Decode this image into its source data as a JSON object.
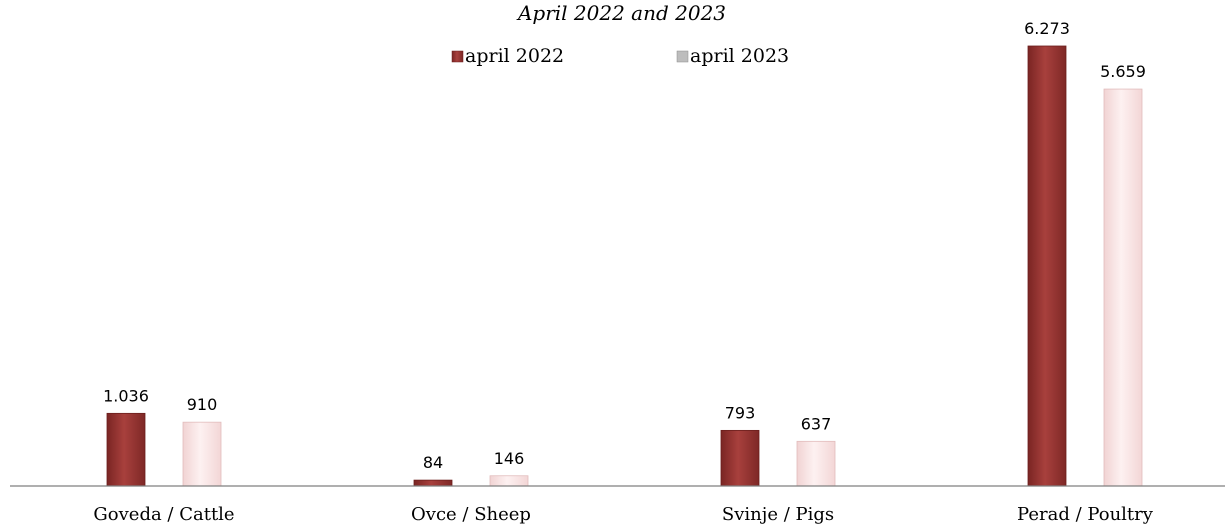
{
  "chart_data": {
    "type": "bar",
    "title": "",
    "subtitle": "April 2022 and 2023",
    "xlabel": "",
    "ylabel": "",
    "categories": [
      "Goveda / Cattle",
      "Ovce / Sheep",
      "Svinje / Pigs",
      "Perad / Poultry"
    ],
    "series": [
      {
        "name": "april 2022",
        "values": [
          1036,
          84,
          793,
          6273
        ],
        "labels": [
          "1.036",
          "84",
          "793",
          "6.273"
        ],
        "color": "#953735"
      },
      {
        "name": "april 2023",
        "values": [
          910,
          146,
          637,
          5659
        ],
        "labels": [
          "910",
          "146",
          "637",
          "5.659"
        ],
        "color": "#f8e4e4"
      }
    ],
    "ylim": [
      0,
      6400
    ],
    "grid": false,
    "legend_position": "top-center"
  }
}
